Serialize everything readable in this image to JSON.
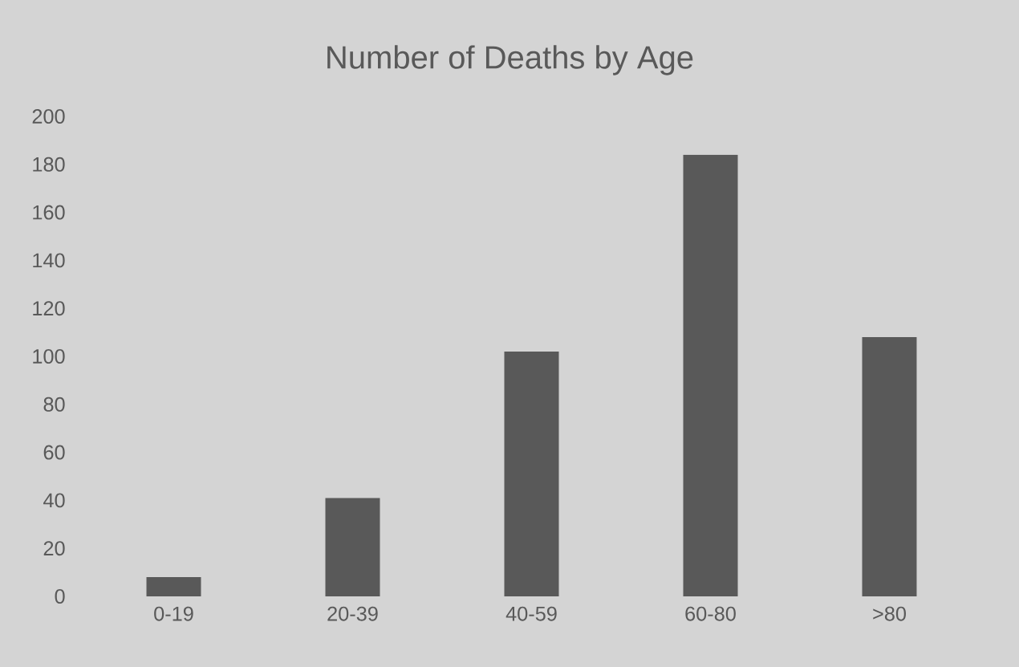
{
  "chart_data": {
    "type": "bar",
    "title": "Number of Deaths by Age",
    "categories": [
      "0-19",
      "20-39",
      "40-59",
      "60-80",
      ">80"
    ],
    "values": [
      8,
      41,
      102,
      184,
      108
    ],
    "color": "#595959",
    "ylim": [
      0,
      200
    ],
    "yticks": [
      0,
      20,
      40,
      60,
      80,
      100,
      120,
      140,
      160,
      180,
      200
    ],
    "grid": false
  }
}
